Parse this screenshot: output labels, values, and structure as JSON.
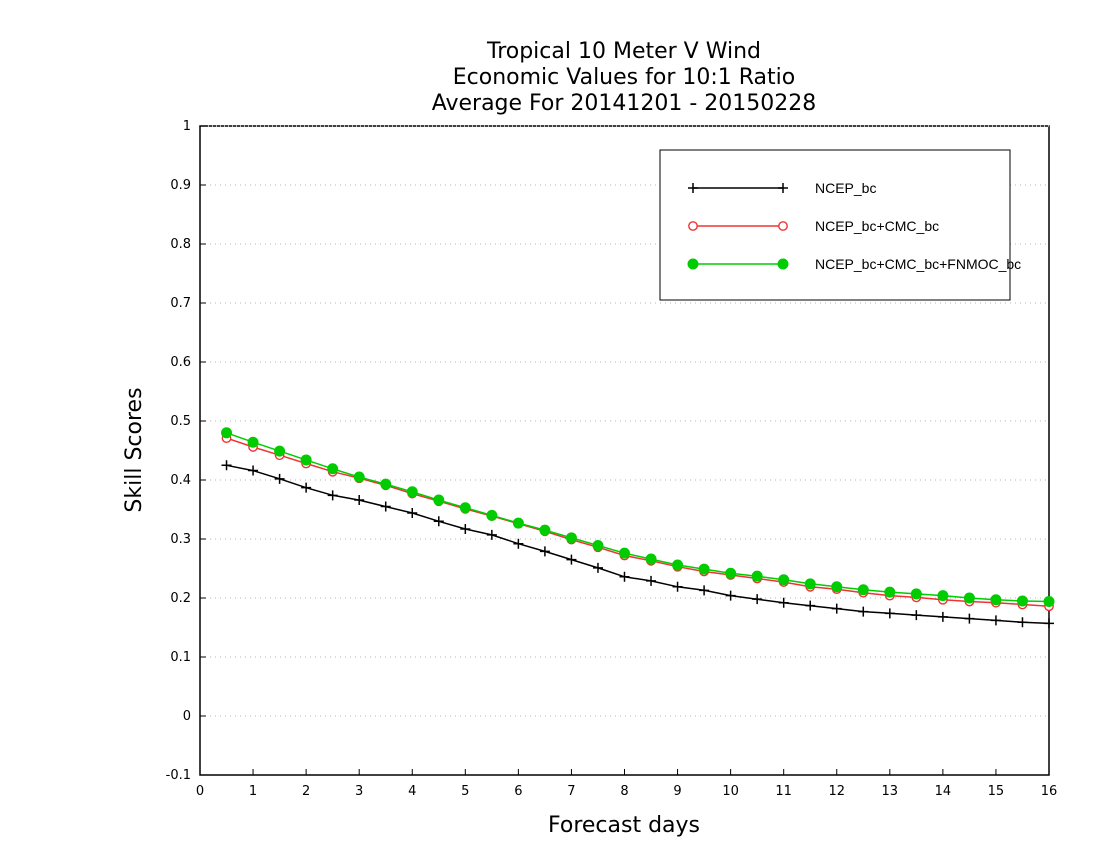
{
  "chart_data": {
    "type": "line",
    "title": [
      "Tropical 10 Meter V Wind",
      "Economic Values for 10:1 Ratio",
      "Average For 20141201 - 20150228"
    ],
    "xlabel": "Forecast days",
    "ylabel": "Skill Scores",
    "xlim": [
      0,
      16
    ],
    "ylim": [
      -0.1,
      1
    ],
    "x_ticks": [
      0,
      1,
      2,
      3,
      4,
      5,
      6,
      7,
      8,
      9,
      10,
      11,
      12,
      13,
      14,
      15,
      16
    ],
    "x_tick_labels": [
      "0",
      "1",
      "2",
      "3",
      "4",
      "5",
      "6",
      "7",
      "8",
      "9",
      "10",
      "11",
      "12",
      "13",
      "14",
      "15",
      "16"
    ],
    "y_ticks": [
      -0.1,
      0,
      0.1,
      0.2,
      0.3,
      0.4,
      0.5,
      0.6,
      0.7,
      0.8,
      0.9,
      1
    ],
    "y_tick_labels": [
      "-0.1",
      "0",
      "0.1",
      "0.2",
      "0.3",
      "0.4",
      "0.5",
      "0.6",
      "0.7",
      "0.8",
      "0.9",
      "1"
    ],
    "grid": "horizontal-dotted",
    "legend_position": "top-right",
    "x": [
      0.5,
      1,
      1.5,
      2,
      2.5,
      3,
      3.5,
      4,
      4.5,
      5,
      5.5,
      6,
      6.5,
      7,
      7.5,
      8,
      8.5,
      9,
      9.5,
      10,
      10.5,
      11,
      11.5,
      12,
      12.5,
      13,
      13.5,
      14,
      14.5,
      15,
      15.5,
      16
    ],
    "series": [
      {
        "name": "NCEP_bc",
        "color": "#000000",
        "marker": "plus",
        "values": [
          0.425,
          0.416,
          0.402,
          0.387,
          0.374,
          0.366,
          0.355,
          0.344,
          0.33,
          0.317,
          0.307,
          0.292,
          0.279,
          0.265,
          0.251,
          0.236,
          0.229,
          0.219,
          0.213,
          0.204,
          0.198,
          0.192,
          0.187,
          0.182,
          0.177,
          0.174,
          0.171,
          0.168,
          0.165,
          0.162,
          0.159,
          0.157
        ]
      },
      {
        "name": "NCEP_bc+CMC_bc",
        "color": "#ee3333",
        "marker": "open-circle",
        "values": [
          0.471,
          0.456,
          0.442,
          0.428,
          0.414,
          0.403,
          0.391,
          0.377,
          0.364,
          0.351,
          0.339,
          0.326,
          0.313,
          0.299,
          0.286,
          0.272,
          0.263,
          0.253,
          0.245,
          0.239,
          0.233,
          0.227,
          0.219,
          0.215,
          0.209,
          0.204,
          0.201,
          0.197,
          0.194,
          0.192,
          0.189,
          0.186
        ]
      },
      {
        "name": "NCEP_bc+CMC_bc+FNMOC_bc",
        "color": "#00cc00",
        "marker": "filled-circle",
        "values": [
          0.48,
          0.464,
          0.449,
          0.434,
          0.419,
          0.405,
          0.393,
          0.38,
          0.366,
          0.353,
          0.34,
          0.327,
          0.315,
          0.302,
          0.289,
          0.276,
          0.266,
          0.256,
          0.249,
          0.242,
          0.237,
          0.231,
          0.224,
          0.219,
          0.214,
          0.21,
          0.207,
          0.204,
          0.2,
          0.197,
          0.195,
          0.194
        ]
      }
    ]
  }
}
